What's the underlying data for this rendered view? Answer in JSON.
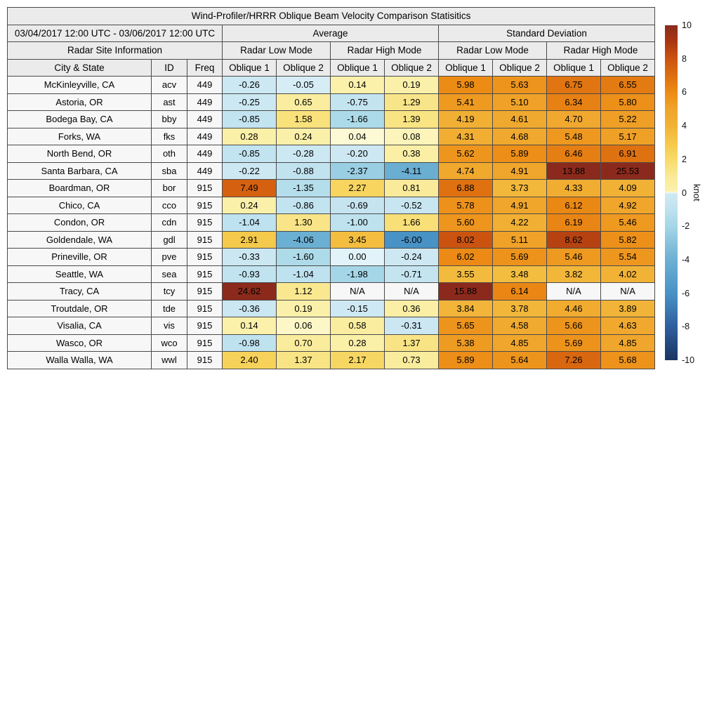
{
  "colors": {
    "header_bg": "#ebebeb",
    "label_bg": "#f7f7f7",
    "na_bg": "#f7f7f7",
    "border": "#4a4a4a",
    "text": "#000000"
  },
  "colormap": {
    "min": -10,
    "max": 10,
    "stops": [
      [
        -10,
        "#183462"
      ],
      [
        -8,
        "#2f5f9e"
      ],
      [
        -6,
        "#4892c6"
      ],
      [
        -4,
        "#6cb0d3"
      ],
      [
        -2,
        "#a5d6e7"
      ],
      [
        -1.5,
        "#b0dcea"
      ],
      [
        -1,
        "#bfe2ef"
      ],
      [
        -0.5,
        "#c8e6f1"
      ],
      [
        -0.1,
        "#cfe9f3"
      ],
      [
        -0.02,
        "#dcf0f7"
      ],
      [
        0,
        "#e2f3f9"
      ],
      [
        0.02,
        "#fefce2"
      ],
      [
        0.1,
        "#fbf1ac"
      ],
      [
        1,
        "#faea96"
      ],
      [
        2,
        "#f8da68"
      ],
      [
        3,
        "#f5c748"
      ],
      [
        4,
        "#f1b236"
      ],
      [
        5,
        "#f0a42a"
      ],
      [
        6,
        "#ec8b15"
      ],
      [
        7,
        "#dd6e10"
      ],
      [
        8,
        "#cc5410"
      ],
      [
        9,
        "#a93712"
      ],
      [
        10,
        "#8b2a1c"
      ]
    ]
  },
  "chart_data": {
    "type": "table",
    "title": "Wind-Profiler/HRRR Oblique Beam Velocity Comparison Statisitics",
    "date_range": "03/04/2017 12:00 UTC - 03/06/2017 12:00 UTC",
    "group_headers": [
      "Average",
      "Standard Deviation"
    ],
    "site_info_header": "Radar Site Information",
    "mode_headers": [
      "Radar Low Mode",
      "Radar High Mode",
      "Radar Low Mode",
      "Radar High Mode"
    ],
    "columns": [
      "City & State",
      "ID",
      "Freq",
      "Oblique 1",
      "Oblique 2",
      "Oblique 1",
      "Oblique 2",
      "Oblique 1",
      "Oblique 2",
      "Oblique 1",
      "Oblique 2"
    ],
    "colorbar": {
      "label": "knot",
      "min": -10,
      "max": 10,
      "ticks": [
        10,
        8,
        6,
        4,
        2,
        0,
        -2,
        -4,
        -6,
        -8,
        -10
      ]
    },
    "rows": [
      {
        "city": "McKinleyville, CA",
        "id": "acv",
        "freq": "449",
        "values": [
          "-0.26",
          "-0.05",
          "0.14",
          "0.19",
          "5.98",
          "5.63",
          "6.75",
          "6.55"
        ]
      },
      {
        "city": "Astoria, OR",
        "id": "ast",
        "freq": "449",
        "values": [
          "-0.25",
          "0.65",
          "-0.75",
          "1.29",
          "5.41",
          "5.10",
          "6.34",
          "5.80"
        ]
      },
      {
        "city": "Bodega Bay, CA",
        "id": "bby",
        "freq": "449",
        "values": [
          "-0.85",
          "1.58",
          "-1.66",
          "1.39",
          "4.19",
          "4.61",
          "4.70",
          "5.22"
        ]
      },
      {
        "city": "Forks, WA",
        "id": "fks",
        "freq": "449",
        "values": [
          "0.28",
          "0.24",
          "0.04",
          "0.08",
          "4.31",
          "4.68",
          "5.48",
          "5.17"
        ]
      },
      {
        "city": "North Bend, OR",
        "id": "oth",
        "freq": "449",
        "values": [
          "-0.85",
          "-0.28",
          "-0.20",
          "0.38",
          "5.62",
          "5.89",
          "6.46",
          "6.91"
        ]
      },
      {
        "city": "Santa Barbara, CA",
        "id": "sba",
        "freq": "449",
        "values": [
          "-0.22",
          "-0.88",
          "-2.37",
          "-4.11",
          "4.74",
          "4.91",
          "13.88",
          "25.53"
        ]
      },
      {
        "city": "Boardman, OR",
        "id": "bor",
        "freq": "915",
        "values": [
          "7.49",
          "-1.35",
          "2.27",
          "0.81",
          "6.88",
          "3.73",
          "4.33",
          "4.09"
        ]
      },
      {
        "city": "Chico, CA",
        "id": "cco",
        "freq": "915",
        "values": [
          "0.24",
          "-0.86",
          "-0.69",
          "-0.52",
          "5.78",
          "4.91",
          "6.12",
          "4.92"
        ]
      },
      {
        "city": "Condon, OR",
        "id": "cdn",
        "freq": "915",
        "values": [
          "-1.04",
          "1.30",
          "-1.00",
          "1.66",
          "5.60",
          "4.22",
          "6.19",
          "5.46"
        ]
      },
      {
        "city": "Goldendale, WA",
        "id": "gdl",
        "freq": "915",
        "values": [
          "2.91",
          "-4.06",
          "3.45",
          "-6.00",
          "8.02",
          "5.11",
          "8.62",
          "5.82"
        ]
      },
      {
        "city": "Prineville, OR",
        "id": "pve",
        "freq": "915",
        "values": [
          "-0.33",
          "-1.60",
          "0.00",
          "-0.24",
          "6.02",
          "5.69",
          "5.46",
          "5.54"
        ]
      },
      {
        "city": "Seattle, WA",
        "id": "sea",
        "freq": "915",
        "values": [
          "-0.93",
          "-1.04",
          "-1.98",
          "-0.71",
          "3.55",
          "3.48",
          "3.82",
          "4.02"
        ]
      },
      {
        "city": "Tracy, CA",
        "id": "tcy",
        "freq": "915",
        "values": [
          "24.62",
          "1.12",
          "N/A",
          "N/A",
          "15.88",
          "6.14",
          "N/A",
          "N/A"
        ]
      },
      {
        "city": "Troutdale, OR",
        "id": "tde",
        "freq": "915",
        "values": [
          "-0.36",
          "0.19",
          "-0.15",
          "0.36",
          "3.84",
          "3.78",
          "4.46",
          "3.89"
        ]
      },
      {
        "city": "Visalia, CA",
        "id": "vis",
        "freq": "915",
        "values": [
          "0.14",
          "0.06",
          "0.58",
          "-0.31",
          "5.65",
          "4.58",
          "5.66",
          "4.63"
        ]
      },
      {
        "city": "Wasco, OR",
        "id": "wco",
        "freq": "915",
        "values": [
          "-0.98",
          "0.70",
          "0.28",
          "1.37",
          "5.38",
          "4.85",
          "5.69",
          "4.85"
        ]
      },
      {
        "city": "Walla Walla, WA",
        "id": "wwl",
        "freq": "915",
        "values": [
          "2.40",
          "1.37",
          "2.17",
          "0.73",
          "5.89",
          "5.64",
          "7.26",
          "5.68"
        ]
      }
    ]
  }
}
